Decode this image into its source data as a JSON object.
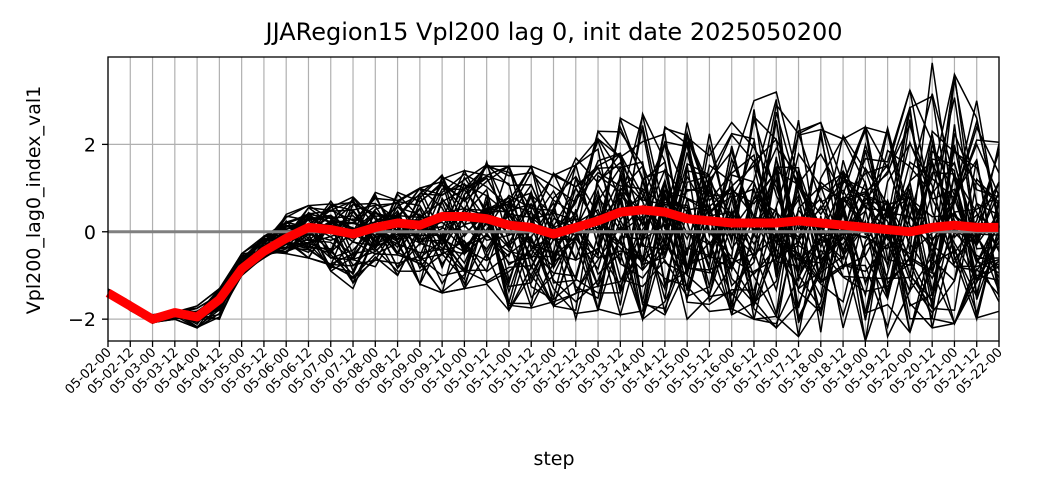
{
  "chart_data": {
    "type": "line",
    "title": "JJARegion15 Vpl200 lag 0, init date 2025050200",
    "xlabel": "step",
    "ylabel": "Vpl200_lag0_index_val1",
    "ylim": [
      -2.5,
      4.0
    ],
    "yticks": [
      -2,
      0,
      2
    ],
    "grid": true,
    "legend": "none",
    "categories": [
      "05-02-00",
      "05-02-12",
      "05-03-00",
      "05-03-12",
      "05-04-00",
      "05-04-12",
      "05-05-00",
      "05-05-12",
      "05-06-00",
      "05-06-12",
      "05-07-00",
      "05-07-12",
      "05-08-00",
      "05-08-12",
      "05-09-00",
      "05-09-12",
      "05-10-00",
      "05-10-12",
      "05-11-00",
      "05-11-12",
      "05-12-00",
      "05-12-12",
      "05-13-00",
      "05-13-12",
      "05-14-00",
      "05-14-12",
      "05-15-00",
      "05-15-12",
      "05-16-00",
      "05-16-12",
      "05-17-00",
      "05-17-12",
      "05-18-00",
      "05-18-12",
      "05-19-00",
      "05-19-12",
      "05-20-00",
      "05-20-12",
      "05-21-00",
      "05-21-12",
      "05-22-00"
    ],
    "ensemble": {
      "members": 50,
      "color": "#000000",
      "spread_envelope": {
        "upper": [
          -1.3,
          -1.6,
          -1.9,
          -1.8,
          -1.7,
          -1.3,
          -0.5,
          -0.1,
          0.4,
          0.6,
          0.7,
          0.8,
          0.9,
          0.9,
          1.0,
          1.3,
          1.4,
          1.6,
          1.5,
          1.5,
          1.6,
          1.8,
          2.3,
          2.6,
          2.7,
          2.4,
          2.5,
          2.4,
          2.5,
          3.0,
          3.2,
          2.9,
          2.5,
          2.4,
          2.4,
          2.6,
          3.3,
          3.9,
          3.6,
          3.0,
          2.4
        ],
        "lower": [
          -1.4,
          -1.8,
          -2.1,
          -2.0,
          -2.2,
          -2.0,
          -1.0,
          -0.6,
          -0.5,
          -0.6,
          -0.9,
          -1.3,
          -0.8,
          -1.0,
          -1.2,
          -1.4,
          -1.3,
          -1.2,
          -1.8,
          -1.9,
          -1.7,
          -2.0,
          -1.8,
          -1.9,
          -2.0,
          -1.9,
          -2.0,
          -2.1,
          -1.9,
          -2.0,
          -2.2,
          -2.4,
          -2.3,
          -2.2,
          -2.5,
          -2.4,
          -2.3,
          -2.2,
          -2.1,
          -2.0,
          -2.1
        ]
      }
    },
    "series": [
      {
        "color": "#ff0000",
        "values": [
          -1.4,
          -1.7,
          -2.0,
          -1.85,
          -1.95,
          -1.55,
          -0.85,
          -0.45,
          -0.15,
          0.1,
          0.05,
          -0.05,
          0.1,
          0.2,
          0.15,
          0.35,
          0.35,
          0.3,
          0.15,
          0.1,
          -0.05,
          0.1,
          0.25,
          0.45,
          0.5,
          0.45,
          0.3,
          0.25,
          0.2,
          0.2,
          0.2,
          0.25,
          0.2,
          0.15,
          0.1,
          0.05,
          0.0,
          0.1,
          0.15,
          0.1,
          0.1
        ]
      }
    ],
    "reference_line": {
      "y": 0,
      "color": "#808080"
    }
  }
}
